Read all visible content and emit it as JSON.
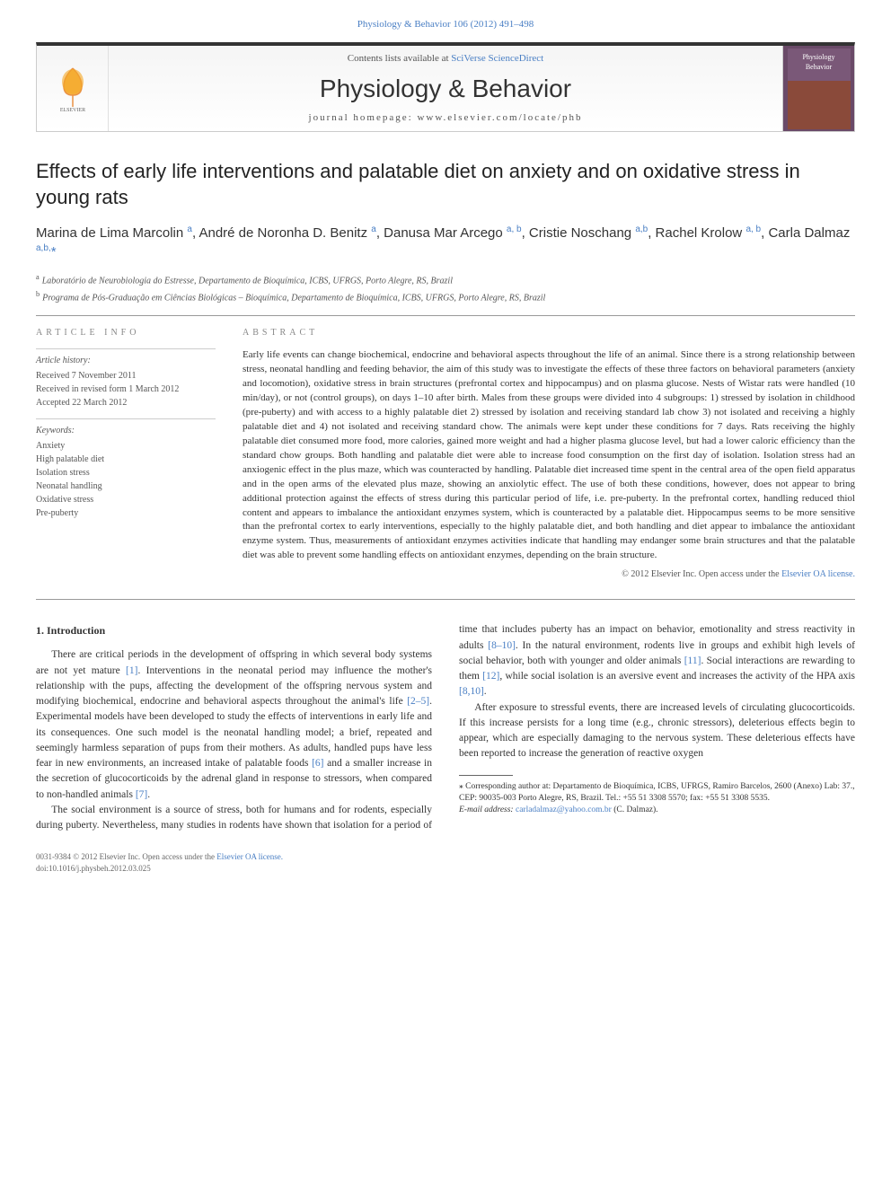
{
  "header": {
    "citation": "Physiology & Behavior 106 (2012) 491–498",
    "contents_prefix": "Contents lists available at ",
    "contents_link": "SciVerse ScienceDirect",
    "journal": "Physiology & Behavior",
    "homepage_prefix": "journal homepage: ",
    "homepage": "www.elsevier.com/locate/phb",
    "cover_line1": "Physiology",
    "cover_line2": "Behavior"
  },
  "title": "Effects of early life interventions and palatable diet on anxiety and on oxidative stress in young rats",
  "authors_html": "Marina de Lima Marcolin <sup>a</sup>, André de Noronha D. Benitz <sup>a</sup>, Danusa Mar Arcego <sup>a, b</sup>, Cristie Noschang <sup>a,b</sup>, Rachel Krolow <sup>a, b</sup>, Carla Dalmaz <sup>a,b,</sup><span class='star'>*</span>",
  "affiliations": {
    "a": "Laboratório de Neurobiologia do Estresse, Departamento de Bioquímica, ICBS, UFRGS, Porto Alegre, RS, Brazil",
    "b": "Programa de Pós-Graduação em Ciências Biológicas – Bioquímica, Departamento de Bioquímica, ICBS, UFRGS, Porto Alegre, RS, Brazil"
  },
  "article_info": {
    "heading": "ARTICLE INFO",
    "history_label": "Article history:",
    "history": [
      "Received 7 November 2011",
      "Received in revised form 1 March 2012",
      "Accepted 22 March 2012"
    ],
    "keywords_label": "Keywords:",
    "keywords": [
      "Anxiety",
      "High palatable diet",
      "Isolation stress",
      "Neonatal handling",
      "Oxidative stress",
      "Pre-puberty"
    ]
  },
  "abstract": {
    "heading": "ABSTRACT",
    "text": "Early life events can change biochemical, endocrine and behavioral aspects throughout the life of an animal. Since there is a strong relationship between stress, neonatal handling and feeding behavior, the aim of this study was to investigate the effects of these three factors on behavioral parameters (anxiety and locomotion), oxidative stress in brain structures (prefrontal cortex and hippocampus) and on plasma glucose. Nests of Wistar rats were handled (10 min/day), or not (control groups), on days 1–10 after birth. Males from these groups were divided into 4 subgroups: 1) stressed by isolation in childhood (pre-puberty) and with access to a highly palatable diet 2) stressed by isolation and receiving standard lab chow 3) not isolated and receiving a highly palatable diet and 4) not isolated and receiving standard chow. The animals were kept under these conditions for 7 days. Rats receiving the highly palatable diet consumed more food, more calories, gained more weight and had a higher plasma glucose level, but had a lower caloric efficiency than the standard chow groups. Both handling and palatable diet were able to increase food consumption on the first day of isolation. Isolation stress had an anxiogenic effect in the plus maze, which was counteracted by handling. Palatable diet increased time spent in the central area of the open field apparatus and in the open arms of the elevated plus maze, showing an anxiolytic effect. The use of both these conditions, however, does not appear to bring additional protection against the effects of stress during this particular period of life, i.e. pre-puberty. In the prefrontal cortex, handling reduced thiol content and appears to imbalance the antioxidant enzymes system, which is counteracted by a palatable diet. Hippocampus seems to be more sensitive than the prefrontal cortex to early interventions, especially to the highly palatable diet, and both handling and diet appear to imbalance the antioxidant enzyme system. Thus, measurements of antioxidant enzymes activities indicate that handling may endanger some brain structures and that the palatable diet was able to prevent some handling effects on antioxidant enzymes, depending on the brain structure.",
    "copyright_prefix": "© 2012 Elsevier Inc. ",
    "copyright_open": "Open access under the ",
    "copyright_link": "Elsevier OA license."
  },
  "body": {
    "section1_heading": "1. Introduction",
    "p1a": "There are critical periods in the development of offspring in which several body systems are not yet mature ",
    "ref1": "[1]",
    "p1b": ". Interventions in the neonatal period may influence the mother's relationship with the pups, affecting the development of the offspring nervous system and modifying biochemical, endocrine and behavioral aspects throughout the animal's life ",
    "ref2_5": "[2–5]",
    "p1c": ". Experimental models have been developed to study the effects of interventions in early life and its consequences. One such model is the neonatal handling model; a brief, repeated and seemingly harmless separation of pups from their mothers. As adults, handled pups have less fear in new environments, an increased intake ",
    "p1d": "of palatable foods ",
    "ref6": "[6]",
    "p1e": " and a smaller increase in the secretion of glucocorticoids by the adrenal gland in response to stressors, when compared to non-handled animals ",
    "ref7": "[7]",
    "p1f": ".",
    "p2a": "The social environment is a source of stress, both for humans and for rodents, especially during puberty. Nevertheless, many studies in rodents have shown that isolation for a period of time that includes puberty has an impact on behavior, emotionality and stress reactivity in adults ",
    "ref8_10": "[8–10]",
    "p2b": ". In the natural environment, rodents live in groups and exhibit high levels of social behavior, both with younger and older animals ",
    "ref11": "[11]",
    "p2c": ". Social interactions are rewarding to them ",
    "ref12": "[12]",
    "p2d": ", while social isolation is an aversive event and increases the activity of the HPA axis ",
    "ref8_10b": "[8,10]",
    "p2e": ".",
    "p3": "After exposure to stressful events, there are increased levels of circulating glucocorticoids. If this increase persists for a long time (e.g., chronic stressors), deleterious effects begin to appear, which are especially damaging to the nervous system. These deleterious effects have been reported to increase the generation of reactive oxygen"
  },
  "footnote": {
    "corr": "Corresponding author at: Departamento de Bioquímica, ICBS, UFRGS, Ramiro Barcelos, 2600 (Anexo) Lab: 37., CEP: 90035-003 Porto Alegre, RS, Brazil. Tel.: +55 51 3308 5570; fax: +55 51 3308 5535.",
    "email_label": "E-mail address: ",
    "email": "carladalmaz@yahoo.com.br",
    "email_suffix": " (C. Dalmaz)."
  },
  "bottom": {
    "issn": "0031-9384 © 2012 Elsevier Inc. ",
    "open_access": "Open access under the ",
    "oa_link": "Elsevier OA license.",
    "doi": "doi:10.1016/j.physbeh.2012.03.025"
  },
  "colors": {
    "link": "#4a7fc4",
    "text": "#333333",
    "muted": "#555555",
    "rule": "#999999"
  }
}
